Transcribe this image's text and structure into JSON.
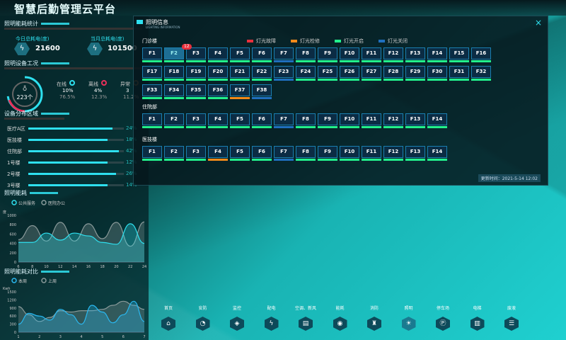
{
  "app": {
    "title": "智慧后勤管理云平台"
  },
  "colors": {
    "fault": "#e8303c",
    "repair": "#f28a1a",
    "on": "#22f08c",
    "off": "#1f6fbf",
    "accent": "#2ee0ef"
  },
  "energy_stats": {
    "title": "照明能耗统计",
    "today_label": "今日总耗电(度)",
    "today_value": "21600",
    "month_label": "当月总耗电(度)",
    "month_value": "101500",
    "icon": "lightning-icon"
  },
  "device_status": {
    "title": "照明设备工况",
    "total": "223个",
    "items": [
      {
        "label": "在线",
        "pct": "10%",
        "sub": "76.5%",
        "color": "#2ee0ef"
      },
      {
        "label": "离线",
        "pct": "4%",
        "sub": "12.3%",
        "color": "#e8305a"
      },
      {
        "label": "异常",
        "pct": "3",
        "sub": "11.2%",
        "color": "#8a6a40"
      }
    ]
  },
  "distribution": {
    "title": "设备分布区域",
    "items": [
      {
        "label": "医疗A区",
        "value": "24%",
        "fill": 0.88
      },
      {
        "label": "医技楼",
        "value": "18%",
        "fill": 0.83
      },
      {
        "label": "住院部",
        "value": "42%",
        "fill": 0.95
      },
      {
        "label": "1号楼",
        "value": "12%",
        "fill": 0.83
      },
      {
        "label": "2号楼",
        "value": "26%",
        "fill": 0.92
      },
      {
        "label": "3号楼",
        "value": "14%",
        "fill": 0.83
      }
    ]
  },
  "chart_data": [
    {
      "type": "area",
      "title": "照明能耗",
      "ylabel": "度",
      "ylim": [
        0,
        1000
      ],
      "yticks": [
        0,
        200,
        400,
        600,
        800,
        1000
      ],
      "xticks": [
        6,
        8,
        10,
        12,
        14,
        16,
        18,
        20,
        22,
        24
      ],
      "x": [
        6,
        8,
        10,
        12,
        14,
        16,
        18,
        20,
        22,
        24
      ],
      "series": [
        {
          "name": "公共服务",
          "color": "#2ee0ef",
          "values": [
            420,
            420,
            620,
            470,
            620,
            560,
            420,
            380,
            820,
            400
          ]
        },
        {
          "name": "医院办公",
          "color": "#8a9a9a",
          "values": [
            480,
            780,
            450,
            850,
            450,
            820,
            500,
            850,
            340,
            860
          ]
        }
      ]
    },
    {
      "type": "area",
      "title": "照明能耗对比",
      "ylabel": "Kwh",
      "ylim": [
        0,
        1500
      ],
      "yticks": [
        0,
        300,
        600,
        900,
        1200,
        1500
      ],
      "xticks": [
        1,
        2,
        3,
        4,
        5,
        6,
        7
      ],
      "x": [
        1,
        1.5,
        2,
        2.5,
        3,
        3.5,
        4,
        4.5,
        5,
        5.5,
        6,
        6.5,
        7
      ],
      "series": [
        {
          "name": "本周",
          "color": "#2ab8f0",
          "values": [
            300,
            700,
            600,
            450,
            850,
            650,
            300,
            1000,
            750,
            350,
            650,
            1150,
            400
          ]
        },
        {
          "name": "上周",
          "color": "#8a9a9a",
          "values": [
            950,
            650,
            400,
            550,
            800,
            750,
            800,
            800,
            850,
            1000,
            1150,
            1000,
            850
          ]
        }
      ]
    }
  ],
  "modal": {
    "title": "照明信息",
    "subtitle": "LIGHTING INFORMATION",
    "close": "×",
    "legend": [
      {
        "label": "灯光故障",
        "key": "fault"
      },
      {
        "label": "灯光检修",
        "key": "repair"
      },
      {
        "label": "灯光开启",
        "key": "on"
      },
      {
        "label": "灯光关闭",
        "key": "off"
      }
    ],
    "groups": [
      {
        "name": "门诊楼",
        "count": 38,
        "status": {
          "7": "off",
          "23": "off",
          "37": "repair",
          "38": "off"
        },
        "selected": 2,
        "badge": "12"
      },
      {
        "name": "住院部",
        "count": 14,
        "status": {
          "7": "off"
        }
      },
      {
        "name": "医技楼",
        "count": 14,
        "status": {
          "4": "repair",
          "7": "off"
        }
      }
    ],
    "update_time": "更新时间：2021-5-14  12:02"
  },
  "nav": [
    {
      "label": "首页",
      "icon": "home-icon",
      "g": "⌂"
    },
    {
      "label": "安防",
      "icon": "camera-icon",
      "g": "◔"
    },
    {
      "label": "监控",
      "icon": "shield-icon",
      "g": "◈"
    },
    {
      "label": "配电",
      "icon": "lightning-icon",
      "g": "ϟ"
    },
    {
      "label": "空调、新风",
      "icon": "air-conditioner-icon",
      "g": "▤"
    },
    {
      "label": "能耗",
      "icon": "energy-icon",
      "g": "◉"
    },
    {
      "label": "消防",
      "icon": "hydrant-icon",
      "g": "♜"
    },
    {
      "label": "照明",
      "icon": "bulb-icon",
      "g": "☀"
    },
    {
      "label": "停车场",
      "icon": "parking-icon",
      "g": "Ⓟ"
    },
    {
      "label": "电梯",
      "icon": "elevator-icon",
      "g": "▥"
    },
    {
      "label": "废液",
      "icon": "waste-icon",
      "g": "☰"
    }
  ]
}
